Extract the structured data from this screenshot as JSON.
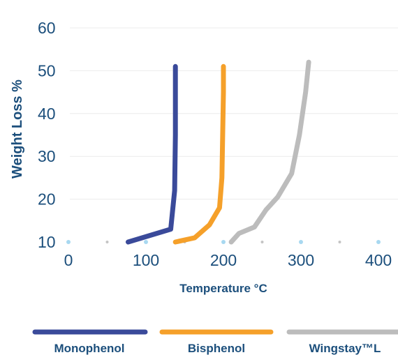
{
  "chart_data": {
    "type": "line",
    "xlabel": "Temperature °C",
    "ylabel": "Weight Loss %",
    "xlim": [
      0,
      400
    ],
    "ylim": [
      10,
      60
    ],
    "xticks": [
      0,
      100,
      200,
      300,
      400
    ],
    "yticks": [
      10,
      20,
      30,
      40,
      50,
      60
    ],
    "grid": "horizontal",
    "legend_position": "bottom",
    "series": [
      {
        "name": "Monophenol",
        "color": "#3a4a9a",
        "points": [
          [
            77,
            10
          ],
          [
            132,
            13
          ],
          [
            137,
            22
          ],
          [
            138,
            35
          ],
          [
            138,
            45
          ],
          [
            138,
            51
          ]
        ]
      },
      {
        "name": "Bisphenol",
        "color": "#f5a02a",
        "points": [
          [
            138,
            10
          ],
          [
            163,
            11
          ],
          [
            182,
            14
          ],
          [
            195,
            18
          ],
          [
            198,
            25
          ],
          [
            199,
            35
          ],
          [
            200,
            45
          ],
          [
            200,
            51
          ]
        ]
      },
      {
        "name": "Wingstay™L",
        "color": "#bcbcbc",
        "points": [
          [
            210,
            10
          ],
          [
            220,
            12
          ],
          [
            240,
            13.5
          ],
          [
            255,
            17.5
          ],
          [
            270,
            20.5
          ],
          [
            288,
            26
          ],
          [
            298,
            35
          ],
          [
            306,
            45
          ],
          [
            310,
            52
          ]
        ]
      }
    ]
  }
}
